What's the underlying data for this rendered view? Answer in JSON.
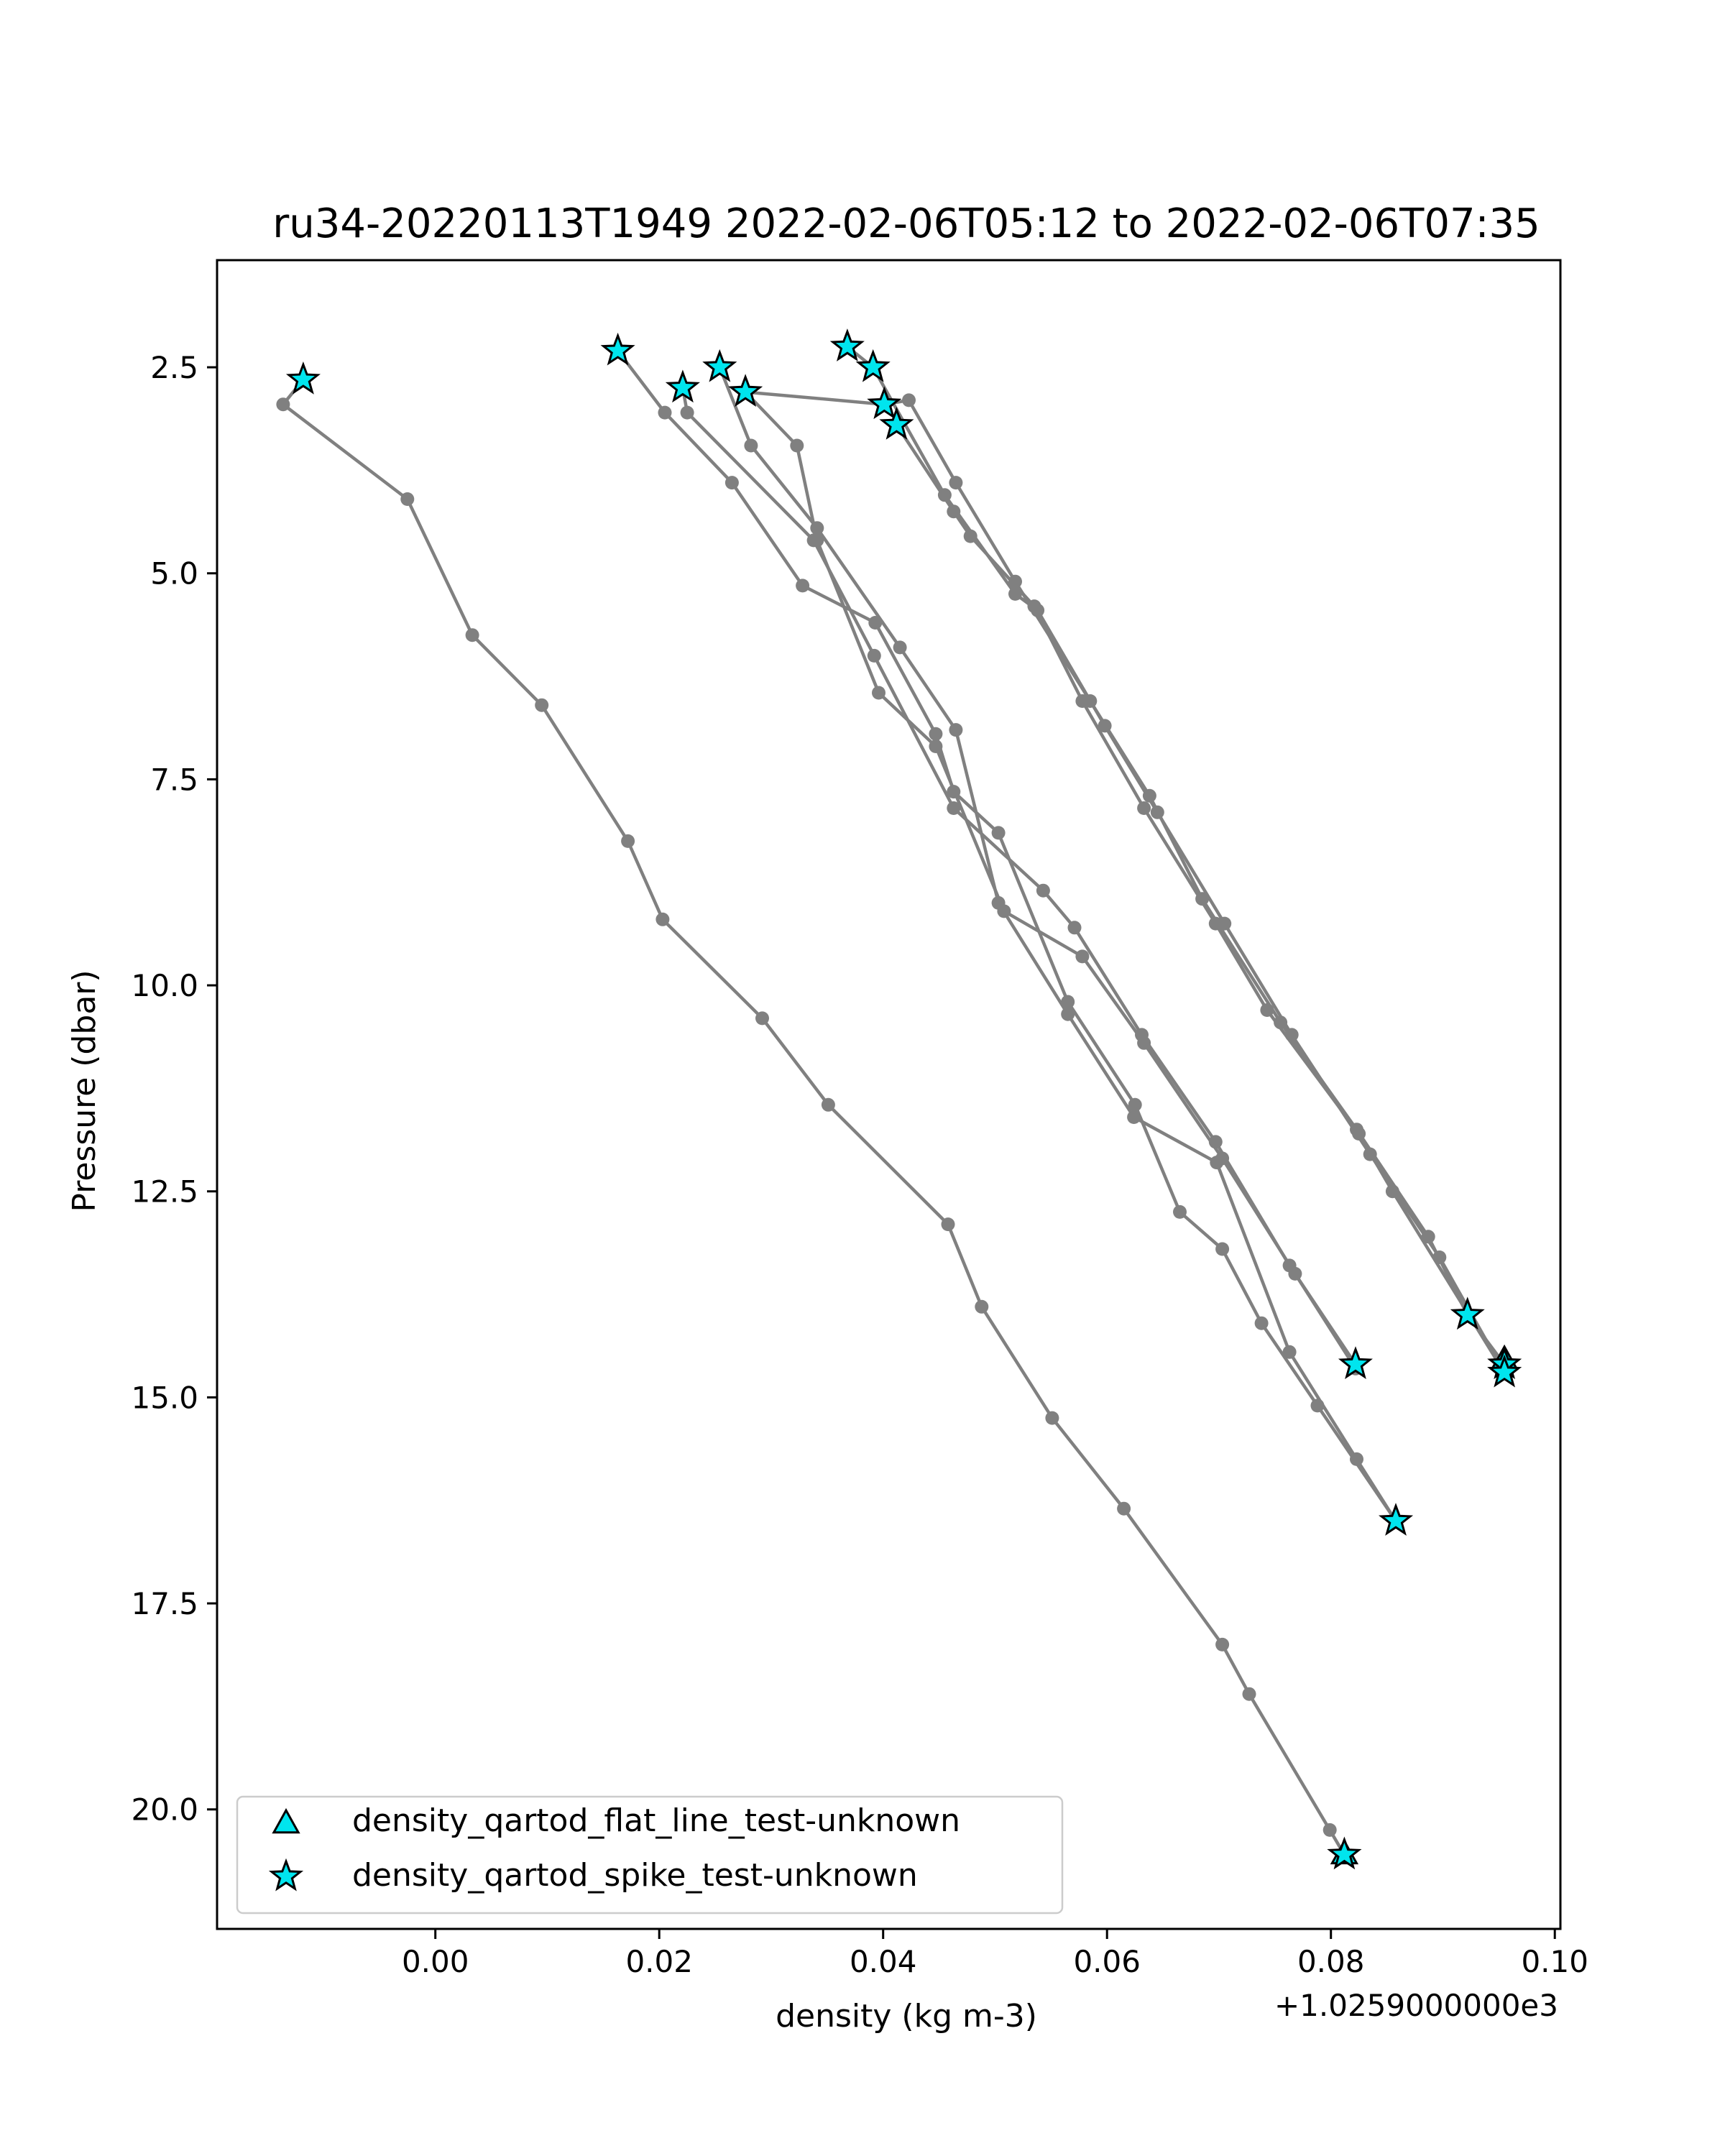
{
  "chart_data": {
    "type": "scatter",
    "title": "ru34-20220113T1949 2022-02-06T05:12 to 2022-02-06T07:35",
    "xlabel": "density (kg m-3)",
    "ylabel": "Pressure (dbar)",
    "x_offset_label": "+1.0259000000e3",
    "xlim": [
      -0.0195,
      0.1005
    ],
    "ylim": [
      21.45,
      1.2
    ],
    "y_inverted": true,
    "xticks": [
      0.0,
      0.02,
      0.04,
      0.06,
      0.08,
      0.1
    ],
    "xtick_labels": [
      "0.00",
      "0.02",
      "0.04",
      "0.06",
      "0.08",
      "0.10"
    ],
    "yticks": [
      2.5,
      5.0,
      7.5,
      10.0,
      12.5,
      15.0,
      17.5,
      20.0
    ],
    "ytick_labels": [
      "2.5",
      "5.0",
      "7.5",
      "10.0",
      "12.5",
      "15.0",
      "17.5",
      "20.0"
    ],
    "grid": false,
    "legend_position": "lower-left",
    "colors": {
      "profile": "#808080",
      "flag_fill": "#00e5ee",
      "flag_edge": "#000000"
    },
    "profiles": [
      {
        "x": [
          -0.0118,
          -0.0136,
          -0.0025,
          0.0033,
          0.0095,
          0.0172,
          0.0203,
          0.0292,
          0.0351,
          0.0458,
          0.0488,
          0.0551,
          0.0615,
          0.0703,
          0.0727,
          0.0799,
          0.0812
        ],
        "y": [
          2.65,
          2.95,
          4.1,
          5.75,
          6.6,
          8.25,
          9.2,
          10.4,
          11.45,
          12.9,
          13.9,
          15.25,
          16.35,
          18.0,
          18.6,
          20.25,
          20.55
        ]
      },
      {
        "x": [
          0.0163,
          0.0205,
          0.0265,
          0.0328,
          0.0393,
          0.0447,
          0.0463,
          0.0503,
          0.0565,
          0.0625,
          0.0665,
          0.0703,
          0.0738,
          0.0788,
          0.0858
        ],
        "y": [
          2.3,
          3.05,
          3.9,
          5.15,
          5.6,
          6.95,
          7.65,
          8.15,
          10.2,
          11.45,
          12.75,
          13.2,
          14.1,
          15.1,
          16.5
        ]
      },
      {
        "x": [
          0.0221,
          0.0225,
          0.0338,
          0.0392,
          0.0463,
          0.0543,
          0.0571,
          0.0631,
          0.0697,
          0.0763,
          0.0822
        ],
        "y": [
          2.75,
          3.05,
          4.6,
          6.0,
          7.85,
          8.85,
          9.3,
          10.6,
          11.9,
          13.4,
          14.6
        ]
      },
      {
        "x": [
          0.0254,
          0.0282,
          0.0341,
          0.0415,
          0.0465,
          0.0503,
          0.0565,
          0.0624,
          0.0698,
          0.0763,
          0.0823,
          0.0858
        ],
        "y": [
          2.5,
          3.45,
          4.45,
          5.9,
          6.9,
          9.0,
          10.35,
          11.6,
          12.15,
          14.45,
          15.75,
          16.5
        ]
      },
      {
        "x": [
          0.0277,
          0.0323,
          0.0341,
          0.0396,
          0.0447,
          0.0508,
          0.0578,
          0.0633,
          0.0703,
          0.0768,
          0.0822
        ],
        "y": [
          2.8,
          3.45,
          4.6,
          6.45,
          7.1,
          9.1,
          9.65,
          10.7,
          12.1,
          13.5,
          14.65
        ]
      },
      {
        "x": [
          0.0277,
          0.0401,
          0.0423,
          0.0465,
          0.0518,
          0.0585,
          0.0638,
          0.0685,
          0.0755,
          0.0823,
          0.0887,
          0.0922,
          0.0955
        ],
        "y": [
          2.8,
          2.95,
          2.9,
          3.9,
          5.1,
          6.55,
          7.7,
          8.95,
          10.45,
          11.75,
          13.05,
          14.0,
          14.6
        ]
      },
      {
        "x": [
          0.0368,
          0.0391,
          0.0455,
          0.0518,
          0.0538,
          0.0598,
          0.0645,
          0.0705,
          0.0765,
          0.0835,
          0.0897,
          0.0955
        ],
        "y": [
          2.25,
          2.5,
          4.05,
          5.25,
          5.45,
          6.85,
          7.9,
          9.25,
          10.6,
          12.05,
          13.3,
          14.7
        ]
      },
      {
        "x": [
          0.0412,
          0.0463,
          0.0478,
          0.0535,
          0.0578,
          0.0633,
          0.0697,
          0.0743,
          0.0825,
          0.0855,
          0.0955
        ],
        "y": [
          3.2,
          4.25,
          4.55,
          5.4,
          6.55,
          7.85,
          9.25,
          10.3,
          11.8,
          12.5,
          14.7
        ]
      }
    ],
    "series": [
      {
        "name": "density_qartod_flat_line_test-unknown",
        "marker": "triangle",
        "x": [
          0.0955,
          0.0812
        ],
        "y": [
          14.55,
          20.55
        ]
      },
      {
        "name": "density_qartod_spike_test-unknown",
        "marker": "star",
        "x": [
          -0.0118,
          0.0163,
          0.0221,
          0.0254,
          0.0277,
          0.0368,
          0.0391,
          0.0401,
          0.0412,
          0.0822,
          0.0858,
          0.0922,
          0.0955,
          0.0955,
          0.0812
        ],
        "y": [
          2.65,
          2.3,
          2.75,
          2.5,
          2.8,
          2.25,
          2.5,
          2.95,
          3.2,
          14.6,
          16.5,
          14.0,
          14.6,
          14.7,
          20.55
        ]
      }
    ]
  }
}
